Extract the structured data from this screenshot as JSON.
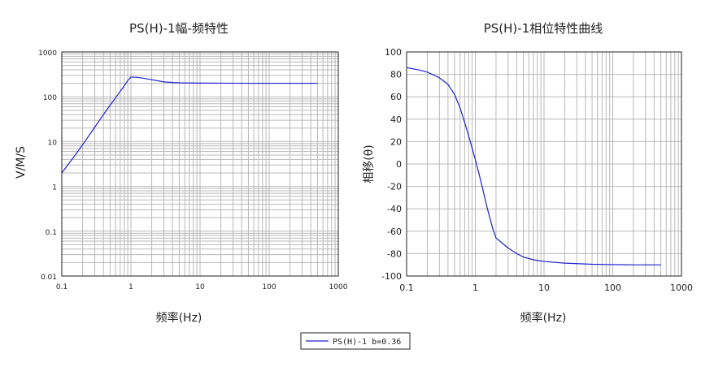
{
  "legend": {
    "label": "PS(H)-1 b=0.36"
  },
  "colors": {
    "series": "#1f1fd0",
    "grid": "#b8b8b8",
    "frame": "#222222"
  },
  "chart_data": [
    {
      "type": "line",
      "title": "PS(H)-1幅-频特性",
      "xlabel": "频率(Hz)",
      "ylabel": "V/M/S",
      "x_scale": "log",
      "y_scale": "log",
      "xlim": [
        0.1,
        1000
      ],
      "ylim": [
        0.01,
        1000
      ],
      "x_ticks": [
        "0.1",
        "1",
        "10",
        "100",
        "1000"
      ],
      "y_ticks": [
        "0.01",
        "0.1",
        "1",
        "10",
        "100",
        "1000"
      ],
      "grid": true,
      "series": [
        {
          "name": "PS(H)-1 b=0.36",
          "x": [
            0.1,
            0.15,
            0.2,
            0.3,
            0.4,
            0.5,
            0.6,
            0.7,
            0.8,
            0.9,
            1.0,
            1.2,
            1.5,
            2,
            3,
            4,
            5,
            7,
            10,
            20,
            50,
            100,
            200,
            500
          ],
          "y": [
            2.0,
            4.6,
            8.5,
            21,
            40,
            65,
            95,
            132,
            175,
            230,
            275,
            272,
            260,
            240,
            215,
            208,
            205,
            203,
            202,
            201,
            200,
            200,
            200,
            200
          ]
        }
      ]
    },
    {
      "type": "line",
      "title": "PS(H)-1相位特性曲线",
      "xlabel": "频率(Hz)",
      "ylabel": "相移(θ)",
      "x_scale": "log",
      "y_scale": "linear",
      "xlim": [
        0.1,
        1000
      ],
      "ylim": [
        -100,
        100
      ],
      "x_ticks": [
        "0.1",
        "1",
        "10",
        "100",
        "1000"
      ],
      "y_ticks": [
        "100",
        "80",
        "60",
        "40",
        "20",
        "0",
        "-20",
        "-40",
        "-60",
        "-80",
        "-100"
      ],
      "grid": true,
      "series": [
        {
          "name": "PS(H)-1 b=0.36",
          "x": [
            0.1,
            0.15,
            0.2,
            0.3,
            0.4,
            0.5,
            0.6,
            0.7,
            0.8,
            0.9,
            1.0,
            1.2,
            1.5,
            1.8,
            2,
            2.5,
            3,
            4,
            5,
            7,
            10,
            20,
            50,
            100,
            200,
            500
          ],
          "y": [
            86,
            84,
            82,
            77,
            71,
            62,
            50,
            37,
            25,
            14,
            4,
            -15,
            -40,
            -58,
            -66,
            -71,
            -75,
            -80,
            -83,
            -85.5,
            -87,
            -88.5,
            -89.5,
            -89.8,
            -90,
            -90
          ]
        }
      ]
    }
  ]
}
